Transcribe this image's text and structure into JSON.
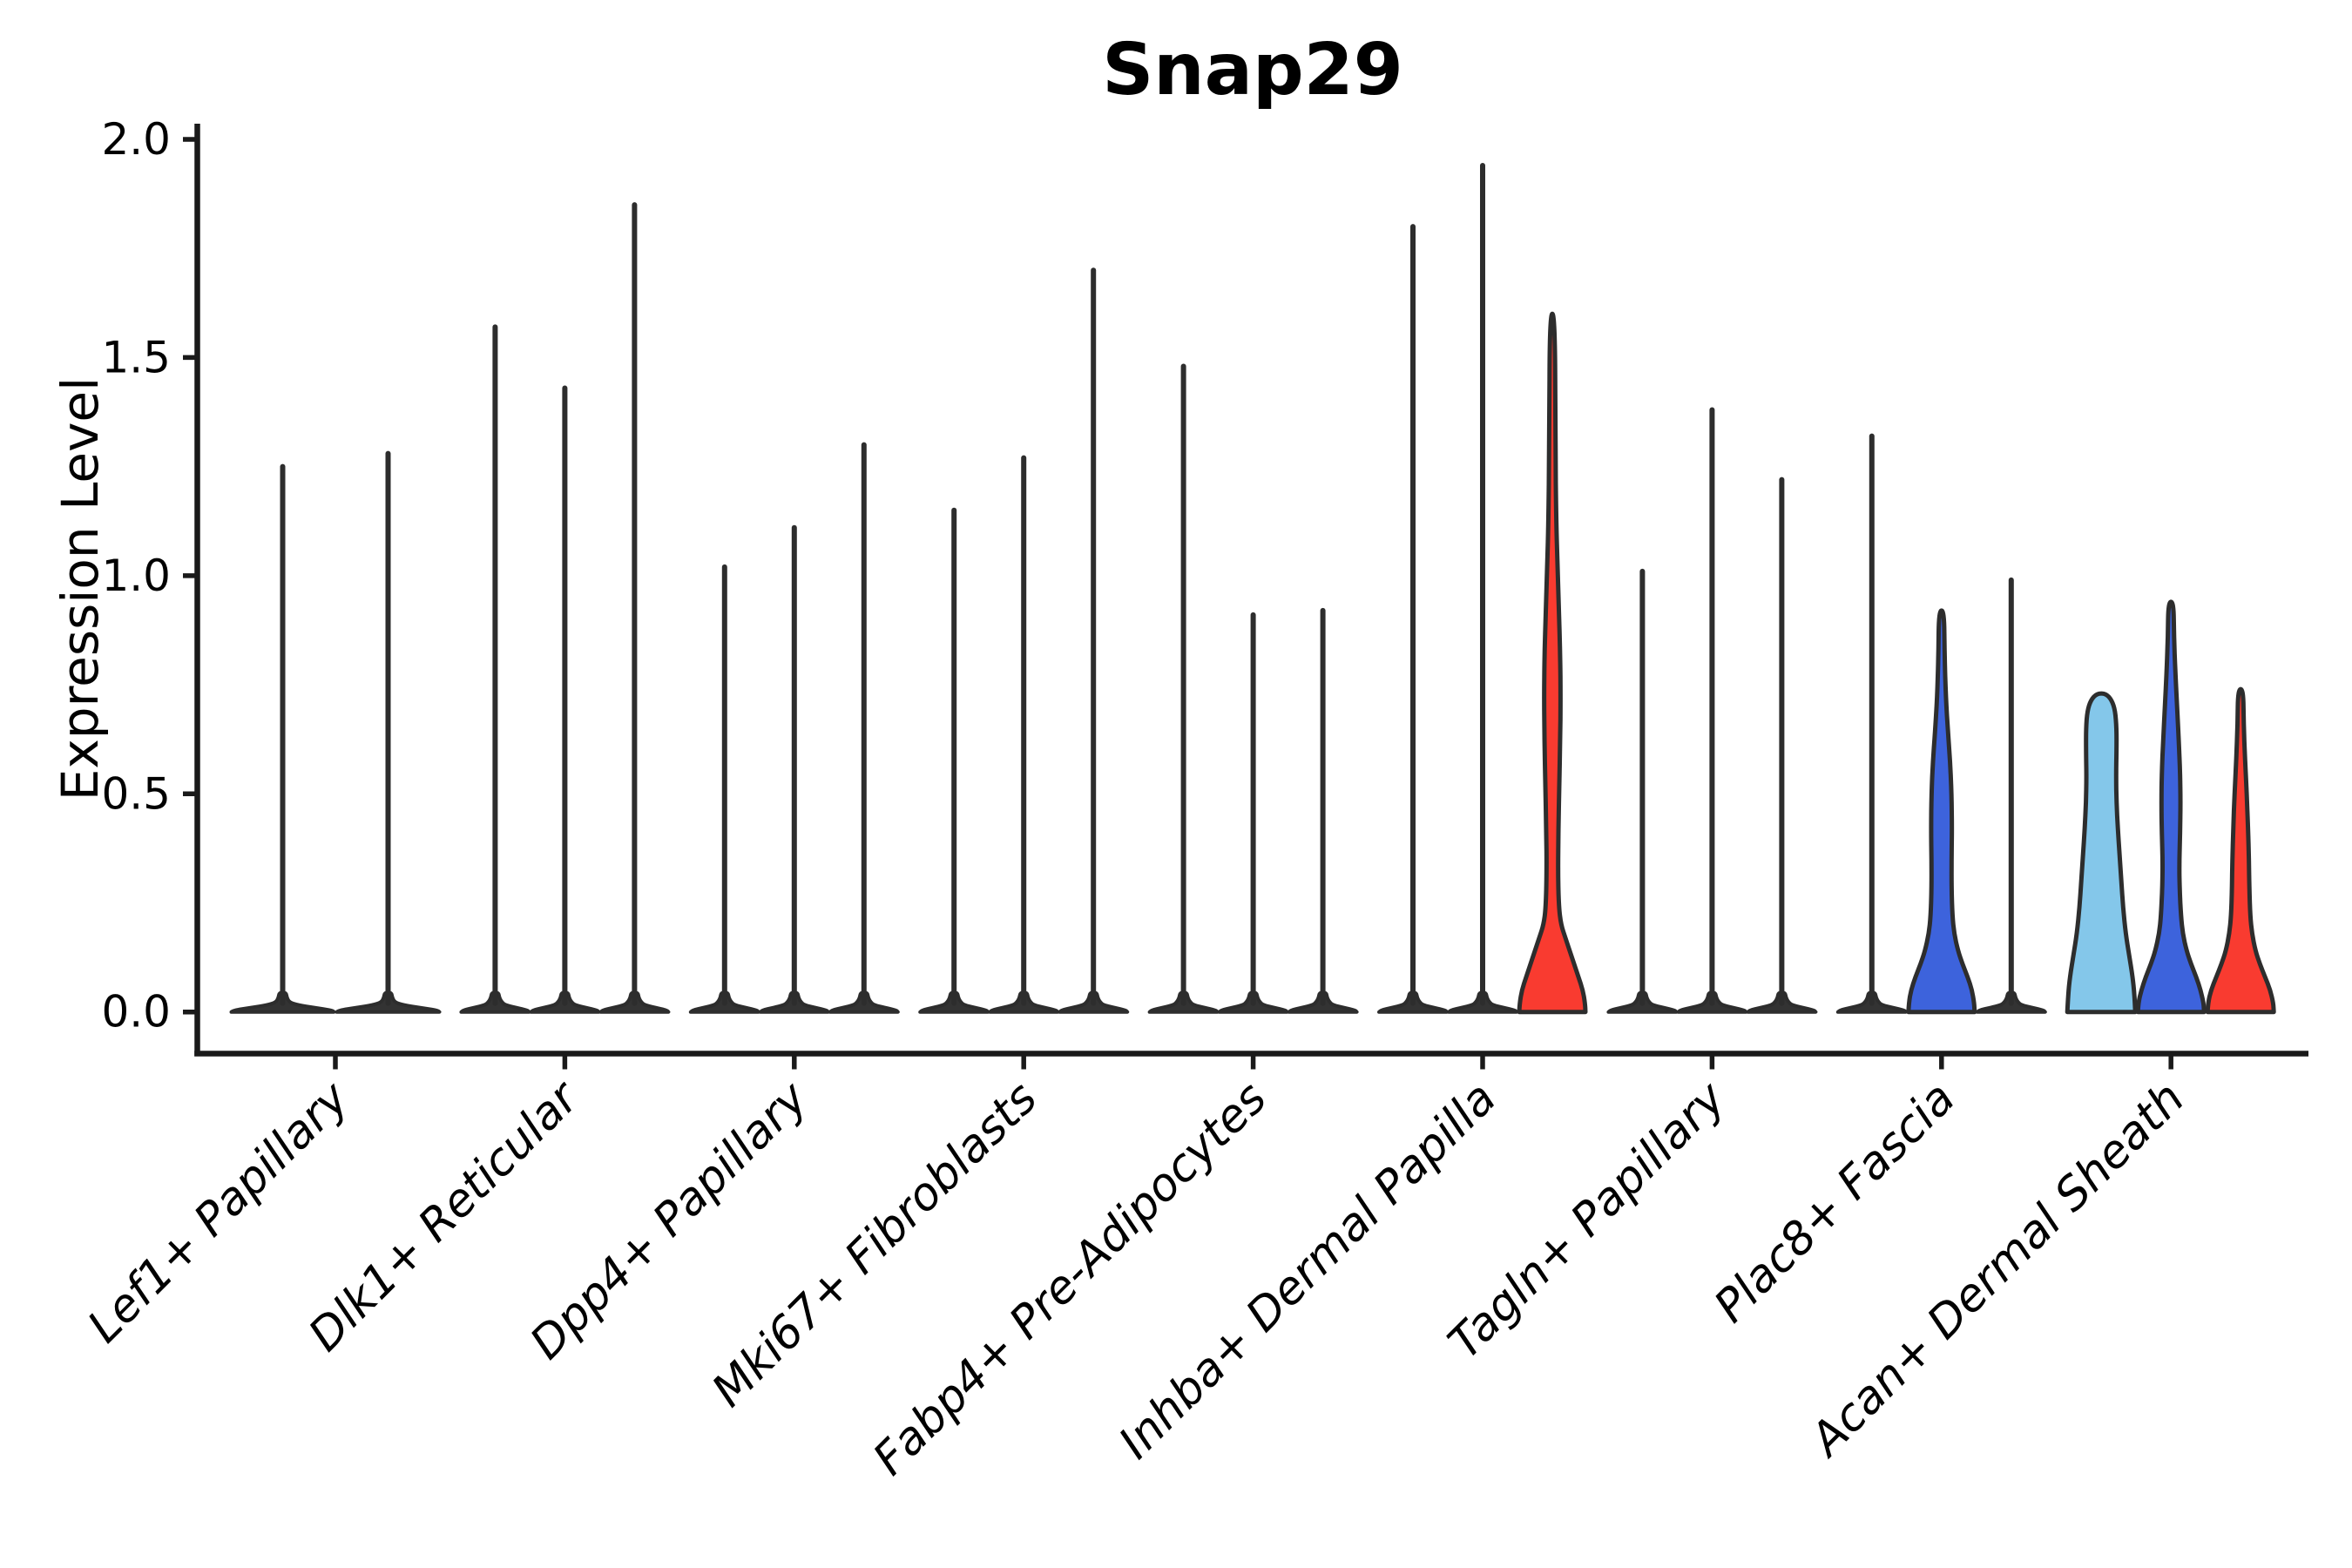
{
  "title": "Snap29",
  "chart_data": {
    "type": "violin",
    "title": "Snap29",
    "ylabel": "Expression Level",
    "xlabel": "",
    "ylim": [
      0,
      2.0
    ],
    "yticks": [
      0.0,
      0.5,
      1.0,
      1.5,
      2.0
    ],
    "grid": false,
    "legend": "none",
    "x_tick_rotation_deg": 45,
    "categories": [
      "Lef1+ Papillary",
      "Dlk1+ Reticular",
      "Dpp4+ Papillary",
      "Mki67+ Fibroblasts",
      "Fabp4+ Pre-Adipocytes",
      "Inhba+ Dermal Papilla",
      "Tagln+ Papillary",
      "Plac8+ Fascia",
      "Acan+ Dermal Sheath"
    ],
    "colors": {
      "spike_fill": "#333333",
      "violin_outline": "#2D2D2D",
      "axis": "#1A1A1A",
      "text": "#000000",
      "red": "#F93B30",
      "blue": "#3D63DC",
      "light_blue": "#84C7EA"
    },
    "groups": [
      {
        "category": "Lef1+ Papillary",
        "violins": [
          {
            "style": "spike",
            "max": 1.25
          },
          {
            "style": "spike",
            "max": 1.28
          }
        ]
      },
      {
        "category": "Dlk1+ Reticular",
        "violins": [
          {
            "style": "spike",
            "max": 1.57
          },
          {
            "style": "spike",
            "max": 1.43
          },
          {
            "style": "spike",
            "max": 1.85
          }
        ]
      },
      {
        "category": "Dpp4+ Papillary",
        "violins": [
          {
            "style": "spike",
            "max": 1.02
          },
          {
            "style": "spike",
            "max": 1.11
          },
          {
            "style": "spike",
            "max": 1.3
          }
        ]
      },
      {
        "category": "Mki67+ Fibroblasts",
        "violins": [
          {
            "style": "spike",
            "max": 1.15
          },
          {
            "style": "spike",
            "max": 1.27
          },
          {
            "style": "spike",
            "max": 1.7
          }
        ]
      },
      {
        "category": "Fabp4+ Pre-Adipocytes",
        "violins": [
          {
            "style": "spike",
            "max": 1.48
          },
          {
            "style": "spike",
            "max": 0.91
          },
          {
            "style": "spike",
            "max": 0.92
          }
        ]
      },
      {
        "category": "Inhba+ Dermal Papilla",
        "violins": [
          {
            "style": "spike",
            "max": 1.8
          },
          {
            "style": "spike",
            "max": 1.94
          },
          {
            "style": "density",
            "color": "red",
            "max": 1.6,
            "profile": [
              [
                0,
                38
              ],
              [
                0.02,
                37.5
              ],
              [
                0.05,
                35
              ],
              [
                0.08,
                30
              ],
              [
                0.11,
                25
              ],
              [
                0.14,
                20
              ],
              [
                0.17,
                15
              ],
              [
                0.2,
                10
              ],
              [
                0.24,
                7.5
              ],
              [
                0.32,
                6.5
              ],
              [
                0.42,
                7
              ],
              [
                0.52,
                8
              ],
              [
                0.62,
                9
              ],
              [
                0.72,
                9.5
              ],
              [
                0.82,
                9
              ],
              [
                0.92,
                7.5
              ],
              [
                1.02,
                6
              ],
              [
                1.12,
                4.5
              ],
              [
                1.3,
                3.5
              ],
              [
                1.6,
                3
              ]
            ]
          }
        ]
      },
      {
        "category": "Tagln+ Papillary",
        "violins": [
          {
            "style": "spike",
            "max": 1.01
          },
          {
            "style": "spike",
            "max": 1.38
          },
          {
            "style": "spike",
            "max": 1.22
          }
        ]
      },
      {
        "category": "Plac8+ Fascia",
        "violins": [
          {
            "style": "spike",
            "max": 1.32
          },
          {
            "style": "density",
            "color": "blue",
            "max": 0.92,
            "profile": [
              [
                0,
                38
              ],
              [
                0.02,
                37.5
              ],
              [
                0.05,
                35
              ],
              [
                0.08,
                30
              ],
              [
                0.11,
                24
              ],
              [
                0.14,
                19
              ],
              [
                0.18,
                14.5
              ],
              [
                0.22,
                12.5
              ],
              [
                0.28,
                11.5
              ],
              [
                0.35,
                11.5
              ],
              [
                0.42,
                12
              ],
              [
                0.5,
                11.5
              ],
              [
                0.57,
                10
              ],
              [
                0.64,
                7.5
              ],
              [
                0.72,
                5
              ],
              [
                0.82,
                3.5
              ],
              [
                0.92,
                3
              ]
            ]
          },
          {
            "style": "spike",
            "max": 0.99
          }
        ]
      },
      {
        "category": "Acan+ Dermal Sheath",
        "violins": [
          {
            "style": "density",
            "color": "light_blue",
            "max": 0.73,
            "profile": [
              [
                0,
                39
              ],
              [
                0.04,
                38
              ],
              [
                0.08,
                36
              ],
              [
                0.13,
                32
              ],
              [
                0.18,
                28
              ],
              [
                0.24,
                25
              ],
              [
                0.3,
                23
              ],
              [
                0.36,
                21
              ],
              [
                0.42,
                19
              ],
              [
                0.48,
                17.5
              ],
              [
                0.54,
                17
              ],
              [
                0.6,
                17.5
              ],
              [
                0.65,
                17.5
              ],
              [
                0.69,
                16
              ],
              [
                0.715,
                12
              ],
              [
                0.73,
                5
              ]
            ]
          },
          {
            "style": "density",
            "color": "blue",
            "max": 0.94,
            "profile": [
              [
                0,
                38
              ],
              [
                0.02,
                37.5
              ],
              [
                0.05,
                34
              ],
              [
                0.08,
                29
              ],
              [
                0.11,
                23
              ],
              [
                0.14,
                18
              ],
              [
                0.18,
                13.5
              ],
              [
                0.22,
                11.5
              ],
              [
                0.28,
                10
              ],
              [
                0.34,
                9.5
              ],
              [
                0.41,
                10.5
              ],
              [
                0.48,
                11
              ],
              [
                0.55,
                10.5
              ],
              [
                0.62,
                9
              ],
              [
                0.7,
                7
              ],
              [
                0.78,
                5
              ],
              [
                0.86,
                3.5
              ],
              [
                0.94,
                3
              ]
            ]
          },
          {
            "style": "density",
            "color": "red",
            "max": 0.74,
            "profile": [
              [
                0,
                38
              ],
              [
                0.02,
                37.5
              ],
              [
                0.05,
                34
              ],
              [
                0.08,
                28
              ],
              [
                0.11,
                22
              ],
              [
                0.14,
                17
              ],
              [
                0.18,
                13
              ],
              [
                0.22,
                11
              ],
              [
                0.28,
                10
              ],
              [
                0.35,
                9.5
              ],
              [
                0.42,
                8.5
              ],
              [
                0.5,
                7
              ],
              [
                0.58,
                5
              ],
              [
                0.66,
                3.5
              ],
              [
                0.74,
                3
              ]
            ]
          }
        ]
      }
    ]
  }
}
